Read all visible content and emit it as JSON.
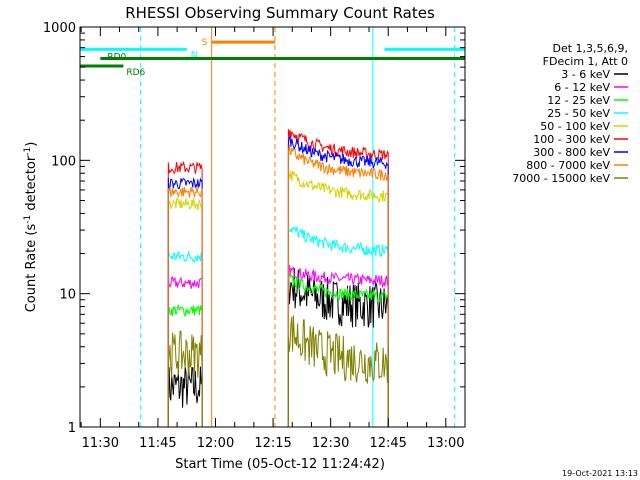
{
  "chart_data": {
    "type": "line",
    "title": "RHESSI Observing Summary Count Rates",
    "xlabel": "Start Time (05-Oct-12 11:24:42)",
    "ylabel": "Count Rate (s",
    "ylabel_sup1": "-1",
    "ylabel_mid": " detector",
    "ylabel_sup2": "-1",
    "ylabel_end": ")",
    "footer": "19-Oct-2021 13:13",
    "yscale": "log",
    "ylim": [
      1,
      1000
    ],
    "xlim_minutes": [
      684.7,
      785.0
    ],
    "x_ticks": [
      {
        "label": "11:30",
        "minutes": 690
      },
      {
        "label": "11:45",
        "minutes": 705
      },
      {
        "label": "12:00",
        "minutes": 720
      },
      {
        "label": "12:15",
        "minutes": 735
      },
      {
        "label": "12:30",
        "minutes": 750
      },
      {
        "label": "12:45",
        "minutes": 765
      },
      {
        "label": "13:00",
        "minutes": 780
      }
    ],
    "y_ticks": [
      {
        "label": "1",
        "value": 1
      },
      {
        "label": "10",
        "value": 10
      },
      {
        "label": "100",
        "value": 100
      },
      {
        "label": "1000",
        "value": 1000
      }
    ],
    "legend_title": [
      "Det 1,3,5,6,9,",
      "FDecim 1, Att 0"
    ],
    "legend_position": "right",
    "series": [
      {
        "name": "3 - 6 keV",
        "color": "#000000",
        "seg1": 2.0,
        "seg2_start": 12.0,
        "seg2_end": 8.0
      },
      {
        "name": "6 - 12 keV",
        "color": "#ff00ff",
        "seg1": 12.0,
        "seg2_start": 15.0,
        "seg2_end": 12.5
      },
      {
        "name": "12 - 25 keV",
        "color": "#00ff00",
        "seg1": 7.5,
        "seg2_start": 13.0,
        "seg2_end": 9.5
      },
      {
        "name": "25 - 50 keV",
        "color": "#00ffff",
        "seg1": 19.0,
        "seg2_start": 32.0,
        "seg2_end": 21.0
      },
      {
        "name": "50 - 100 keV",
        "color": "#d4d400",
        "seg1": 47.0,
        "seg2_start": 80.0,
        "seg2_end": 54.0
      },
      {
        "name": "100 - 300 keV",
        "color": "#ff0000",
        "seg1": 88.0,
        "seg2_start": 170.0,
        "seg2_end": 110.0
      },
      {
        "name": "300 - 800 keV",
        "color": "#0000ff",
        "seg1": 67.0,
        "seg2_start": 145.0,
        "seg2_end": 95.0
      },
      {
        "name": "800 - 7000 keV",
        "color": "#ff8000",
        "seg1": 58.0,
        "seg2_start": 120.0,
        "seg2_end": 78.0
      },
      {
        "name": "7000 - 15000 keV",
        "color": "#808000",
        "seg1": 3.5,
        "seg2_start": 5.5,
        "seg2_end": 3.0
      }
    ],
    "data_segments": [
      {
        "start_minutes": 707.7,
        "end_minutes": 716.5
      },
      {
        "start_minutes": 739.0,
        "end_minutes": 765.0
      }
    ],
    "flag_bars": [
      {
        "label": "N",
        "color": "#00ffff",
        "level": 680,
        "ranges": [
          [
            684.7,
            712.5
          ],
          [
            764.0,
            785.0
          ]
        ]
      },
      {
        "label": "S",
        "color": "#ff8000",
        "level": 770,
        "ranges": [
          [
            719.0,
            735.5
          ]
        ]
      },
      {
        "label": "RD0",
        "color": "#008000",
        "level": 580,
        "ranges": [
          [
            690.0,
            785.0
          ]
        ]
      },
      {
        "label": "RD6",
        "color": "#008000",
        "level": 510,
        "ranges": [
          [
            684.7,
            696.0
          ]
        ]
      }
    ],
    "vertical_markers": [
      {
        "minutes": 684.7,
        "color": "#00ffff",
        "style": "solid"
      },
      {
        "minutes": 700.5,
        "color": "#00ffff",
        "style": "dashed"
      },
      {
        "minutes": 719.0,
        "color": "#ff8000",
        "style": "solid"
      },
      {
        "minutes": 735.5,
        "color": "#ff8000",
        "style": "dashed"
      },
      {
        "minutes": 761.0,
        "color": "#00ffff",
        "style": "solid"
      },
      {
        "minutes": 782.3,
        "color": "#00ffff",
        "style": "dashed"
      }
    ]
  }
}
